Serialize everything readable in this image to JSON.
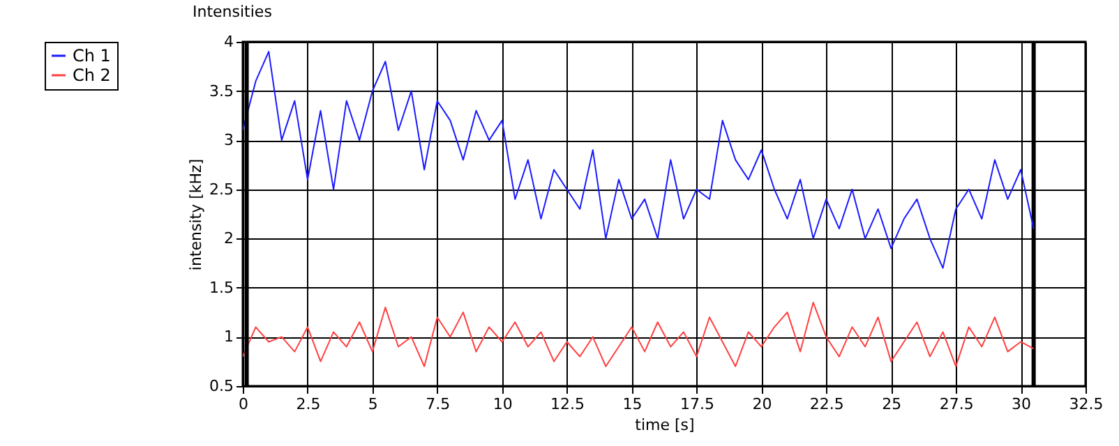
{
  "chart_data": {
    "type": "line",
    "title": "Intensities",
    "xlabel": "time [s]",
    "ylabel": "intensity [kHz]",
    "x": [
      0,
      0.5,
      1,
      1.5,
      2,
      2.5,
      3,
      3.5,
      4,
      4.5,
      5,
      5.5,
      6,
      6.5,
      7,
      7.5,
      8,
      8.5,
      9,
      9.5,
      10,
      10.5,
      11,
      11.5,
      12,
      12.5,
      13,
      13.5,
      14,
      14.5,
      15,
      15.5,
      16,
      16.5,
      17,
      17.5,
      18,
      18.5,
      19,
      19.5,
      20,
      20.5,
      21,
      21.5,
      22,
      22.5,
      23,
      23.5,
      24,
      24.5,
      25,
      25.5,
      26,
      26.5,
      27,
      27.5,
      28,
      28.5,
      29,
      29.5,
      30,
      30.5
    ],
    "series": [
      {
        "name": "Ch 1",
        "color": "#1a1aff",
        "values": [
          3.1,
          3.6,
          3.9,
          3.0,
          3.4,
          2.6,
          3.3,
          2.5,
          3.4,
          3.0,
          3.5,
          3.8,
          3.1,
          3.5,
          2.7,
          3.4,
          3.2,
          2.8,
          3.3,
          3.0,
          3.2,
          2.4,
          2.8,
          2.2,
          2.7,
          2.5,
          2.3,
          2.9,
          2.0,
          2.6,
          2.2,
          2.4,
          2.0,
          2.8,
          2.2,
          2.5,
          2.4,
          3.2,
          2.8,
          2.6,
          2.9,
          2.5,
          2.2,
          2.6,
          2.0,
          2.4,
          2.1,
          2.5,
          2.0,
          2.3,
          1.9,
          2.2,
          2.4,
          2.0,
          1.7,
          2.3,
          2.5,
          2.2,
          2.8,
          2.4,
          2.7,
          2.1
        ]
      },
      {
        "name": "Ch 2",
        "color": "#ff4040",
        "values": [
          0.8,
          1.1,
          0.95,
          1.0,
          0.85,
          1.1,
          0.75,
          1.05,
          0.9,
          1.15,
          0.85,
          1.3,
          0.9,
          1.0,
          0.7,
          1.2,
          1.0,
          1.25,
          0.85,
          1.1,
          0.95,
          1.15,
          0.9,
          1.05,
          0.75,
          0.95,
          0.8,
          1.0,
          0.7,
          0.9,
          1.1,
          0.85,
          1.15,
          0.9,
          1.05,
          0.8,
          1.2,
          0.95,
          0.7,
          1.05,
          0.9,
          1.1,
          1.25,
          0.85,
          1.35,
          1.0,
          0.8,
          1.1,
          0.9,
          1.2,
          0.75,
          0.95,
          1.15,
          0.8,
          1.05,
          0.7,
          1.1,
          0.9,
          1.2,
          0.85,
          0.95,
          0.88
        ]
      }
    ],
    "xlim": [
      0,
      32.5
    ],
    "xticks": [
      0,
      2.5,
      5,
      7.5,
      10,
      12.5,
      15,
      17.5,
      20,
      22.5,
      25,
      27.5,
      30,
      32.5
    ],
    "ylim": [
      0.5,
      4
    ],
    "yticks": [
      0.5,
      1,
      1.5,
      2,
      2.5,
      3,
      3.5,
      4
    ],
    "ref_lines": [
      {
        "axis": "x",
        "value": 0.15,
        "color": "#000000"
      },
      {
        "axis": "x",
        "value": 30.5,
        "color": "#000000"
      }
    ],
    "grid": true,
    "legend": "top left",
    "marker": "none",
    "line_style": "solid"
  }
}
